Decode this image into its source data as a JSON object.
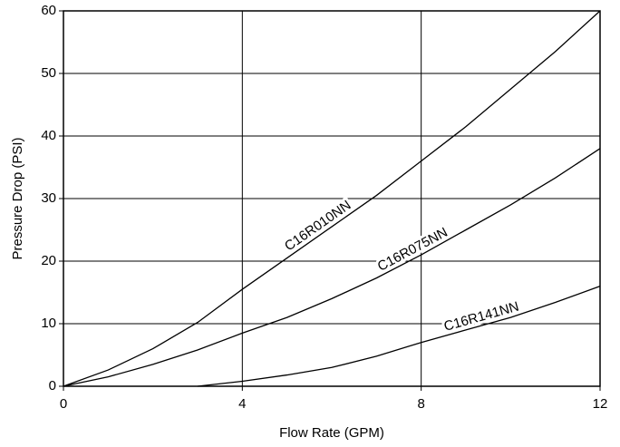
{
  "chart_data": {
    "type": "line",
    "x_label": "Flow Rate (GPM)",
    "y_label": "Pressure Drop (PSI)",
    "x": [
      0,
      1,
      2,
      3,
      4,
      5,
      6,
      7,
      8,
      9,
      10,
      11,
      12
    ],
    "series": [
      {
        "name": "C16R010NN",
        "color": "#000000",
        "values": [
          0,
          2.6,
          6,
          10.2,
          15.5,
          20.5,
          25.5,
          30.5,
          36,
          41.5,
          47.5,
          53.5,
          60
        ]
      },
      {
        "name": "C16R075NN",
        "color": "#000000",
        "values": [
          0,
          1.5,
          3.5,
          5.8,
          8.5,
          11,
          14,
          17.3,
          21,
          25,
          29,
          33.3,
          38
        ]
      },
      {
        "name": "C16R141NN",
        "color": "#000000",
        "values": [
          null,
          null,
          null,
          0,
          0.8,
          1.8,
          3,
          4.8,
          7,
          9,
          11,
          13.4,
          16
        ]
      }
    ],
    "xlim": [
      0,
      12
    ],
    "xticks": [
      0,
      4,
      8,
      12
    ],
    "ylim": [
      0,
      60
    ],
    "yticks": [
      0,
      10,
      20,
      30,
      40,
      50,
      60
    ],
    "grid": true
  }
}
